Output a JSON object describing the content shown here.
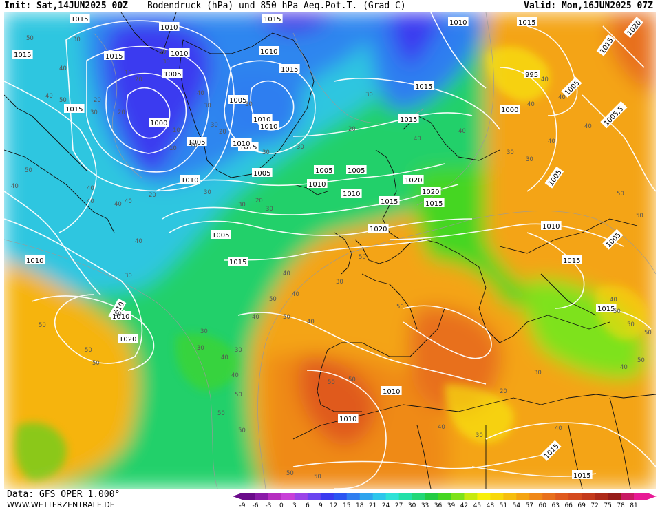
{
  "header": {
    "init": "Init: Sat,14JUN2025 00Z",
    "title": "Bodendruck (hPa) und 850 hPa Aeq.Pot.T. (Grad C)",
    "valid": "Valid: Mon,16JUN2025 07Z"
  },
  "footer": {
    "source": "Data: GFS OPER 1.000°",
    "website": "WWW.WETTERZENTRALE.DE"
  },
  "legend": {
    "ticks": [
      "-9",
      "-6",
      "-3",
      "0",
      "3",
      "6",
      "9",
      "12",
      "15",
      "18",
      "21",
      "24",
      "27",
      "30",
      "33",
      "36",
      "39",
      "42",
      "45",
      "48",
      "51",
      "54",
      "57",
      "60",
      "63",
      "66",
      "69",
      "72",
      "75",
      "78",
      "81"
    ],
    "colors": [
      "#6a0a8a",
      "#8a1aa8",
      "#b52ec0",
      "#c840d8",
      "#9a44e8",
      "#6a44f0",
      "#3a3af0",
      "#2a55f2",
      "#2f7ef0",
      "#2ea4ee",
      "#2dc6ec",
      "#2ee2d8",
      "#22e0a8",
      "#22d878",
      "#22cc44",
      "#44d622",
      "#7ee21a",
      "#c6ea10",
      "#f8f00a",
      "#f8d80a",
      "#f6be0e",
      "#f4a412",
      "#ef8818",
      "#e8701c",
      "#e05a1e",
      "#d44a1e",
      "#c43a1c",
      "#ae2a1a",
      "#961c1a",
      "#c81a64",
      "#e81a96"
    ]
  },
  "pressure_labels": [
    "1015",
    "1010",
    "1015",
    "1010",
    "1015",
    "1005",
    "1015",
    "1000",
    "1010",
    "1015",
    "1005",
    "1010",
    "1010",
    "1015",
    "1005",
    "1010",
    "1015",
    "1005",
    "1010",
    "1005",
    "1005",
    "1010",
    "1015",
    "1020",
    "1005",
    "1015",
    "1015",
    "1010",
    "1020",
    "1020",
    "1015",
    "1010",
    "1000",
    "1005,5",
    "1005",
    "1010",
    "1015",
    "1015",
    "1020",
    "1015",
    "1010",
    "1020",
    "1015",
    "1015",
    "1015",
    "1015",
    "995",
    "1010",
    "1005",
    "1005",
    "1010",
    "1010",
    "1010"
  ],
  "thetae_labels": [
    "50",
    "40",
    "30",
    "50",
    "40",
    "20",
    "30",
    "20",
    "30",
    "20",
    "40",
    "30",
    "10",
    "20",
    "10",
    "20",
    "10",
    "30",
    "20",
    "30",
    "30",
    "30",
    "20",
    "30",
    "30",
    "30",
    "20",
    "20",
    "30",
    "40",
    "40",
    "30",
    "30",
    "40",
    "40",
    "40",
    "40",
    "40",
    "50",
    "50",
    "50",
    "50",
    "50",
    "50",
    "40",
    "40",
    "50",
    "40",
    "40",
    "40",
    "40",
    "40",
    "50",
    "50",
    "40",
    "50",
    "50",
    "30",
    "30",
    "30",
    "30",
    "40",
    "40",
    "50",
    "50",
    "50",
    "50",
    "50",
    "50",
    "50",
    "40",
    "40",
    "50",
    "50",
    "40",
    "40",
    "30",
    "50",
    "50",
    "40",
    "20",
    "30",
    "30",
    "40"
  ]
}
